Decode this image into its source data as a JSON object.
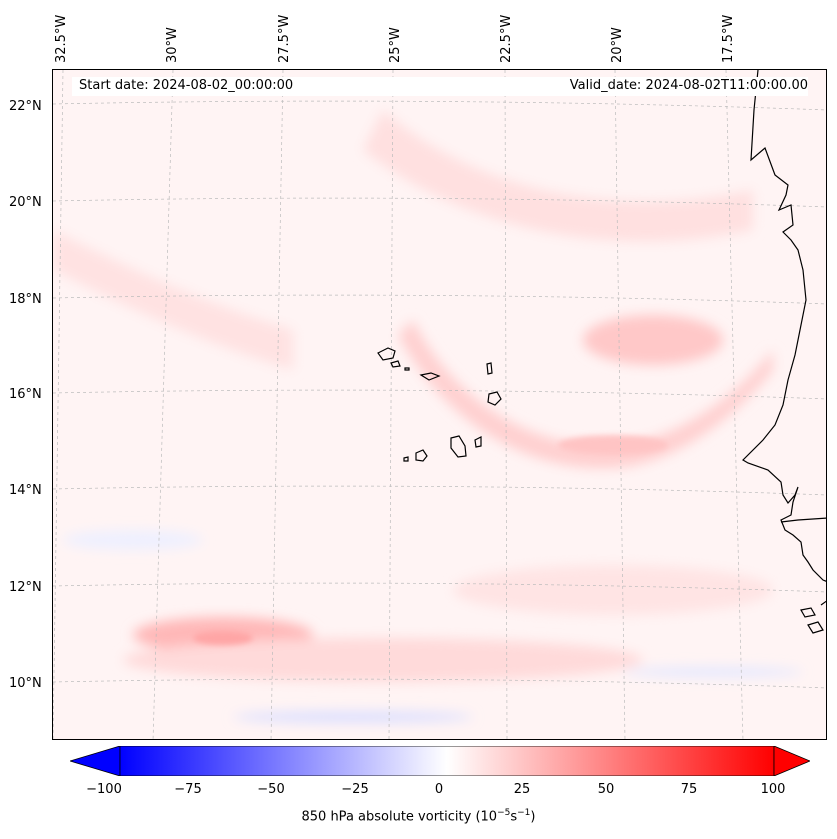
{
  "map": {
    "start_date": "Start date: 2024-08-02_00:00:00",
    "valid_date": "Valid_date: 2024-08-02T11:00:00.00",
    "longitude_labels": [
      "32.5°W",
      "30°W",
      "27.5°W",
      "25°W",
      "22.5°W",
      "20°W",
      "17.5°W"
    ],
    "latitude_labels": [
      "22°N",
      "20°N",
      "18°N",
      "16°N",
      "14°N",
      "12°N",
      "10°N"
    ],
    "features": [
      "Cape Verde islands",
      "West African coastline"
    ]
  },
  "colorbar": {
    "tick_labels": [
      "−100",
      "−75",
      "−50",
      "−25",
      "0",
      "25",
      "50",
      "75",
      "100"
    ],
    "min": -100,
    "max": 100,
    "label_text": "850 hPa absolute vorticity (10",
    "label_exp1": "−5",
    "label_mid": "s",
    "label_exp2": "−1",
    "label_close": ")",
    "colors": {
      "negative": "#0000ff",
      "zero": "#ffffff",
      "positive": "#ff0000"
    }
  }
}
